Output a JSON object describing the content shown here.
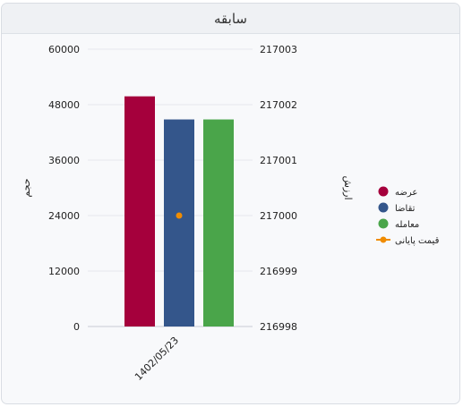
{
  "panel": {
    "title": "سابقه"
  },
  "chart_data": {
    "type": "bar",
    "categories": [
      "1402/05/23"
    ],
    "series": [
      {
        "name": "عرضه",
        "type": "bar",
        "axis": "left",
        "values": [
          49800
        ],
        "color": "#a5003c"
      },
      {
        "name": "تقاضا",
        "type": "bar",
        "axis": "left",
        "values": [
          44800
        ],
        "color": "#34568b"
      },
      {
        "name": "معامله",
        "type": "bar",
        "axis": "left",
        "values": [
          44800
        ],
        "color": "#4aa54a"
      },
      {
        "name": "قیمت پایانی",
        "type": "line",
        "axis": "right",
        "values": [
          217000
        ],
        "color": "#f08c00"
      }
    ],
    "y_left": {
      "label": "حجم",
      "ylim": [
        0,
        60000
      ],
      "ticks": [
        "0",
        "12000",
        "24000",
        "36000",
        "48000",
        "60000"
      ]
    },
    "y_right": {
      "label": "ارزش",
      "ylim": [
        216998,
        217003
      ],
      "ticks": [
        "216998",
        "216999",
        "217000",
        "217001",
        "217002",
        "217003"
      ]
    },
    "grid": true,
    "legend": "right"
  }
}
